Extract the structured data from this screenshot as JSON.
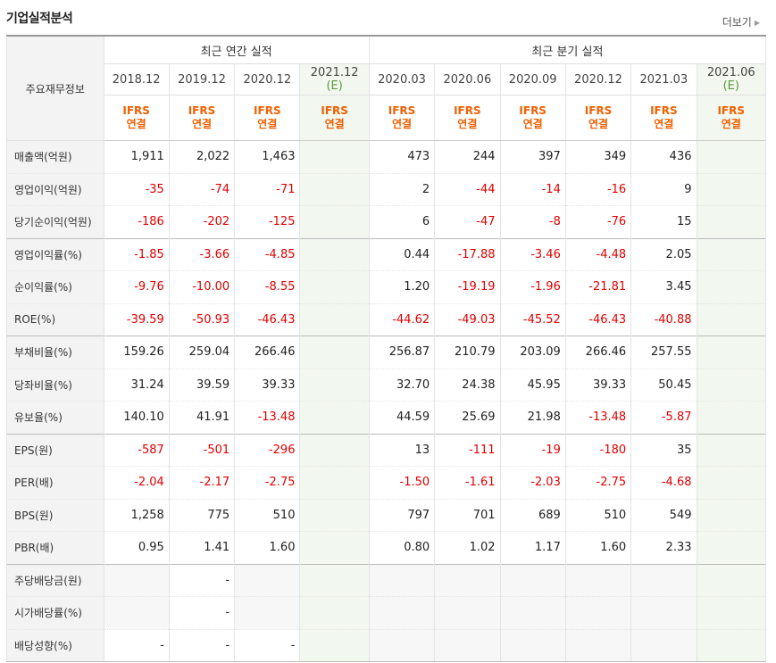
{
  "title": "기업실적분석",
  "more_label": "더보기",
  "more_icon": "triangle-right-icon",
  "row_header_label": "주요재무정보",
  "groups": [
    "최근 연간 실적",
    "최근 분기 실적"
  ],
  "periods": [
    {
      "period": "2018.12",
      "est": ""
    },
    {
      "period": "2019.12",
      "est": ""
    },
    {
      "period": "2020.12",
      "est": ""
    },
    {
      "period": "2021.12",
      "est": "(E)"
    },
    {
      "period": "2020.03",
      "est": ""
    },
    {
      "period": "2020.06",
      "est": ""
    },
    {
      "period": "2020.09",
      "est": ""
    },
    {
      "period": "2020.12",
      "est": ""
    },
    {
      "period": "2021.03",
      "est": ""
    },
    {
      "period": "2021.06",
      "est": "(E)"
    }
  ],
  "basis": {
    "line1": "IFRS",
    "line2": "연결"
  },
  "colors": {
    "negative": "#e00000",
    "basis": "#f06000",
    "estimate": "#5a9a3a"
  },
  "rows": [
    {
      "label": "매출액(억원)",
      "values": [
        "1,911",
        "2,022",
        "1,463",
        "",
        "473",
        "244",
        "397",
        "349",
        "436",
        ""
      ]
    },
    {
      "label": "영업이익(억원)",
      "values": [
        "-35",
        "-74",
        "-71",
        "",
        "2",
        "-44",
        "-14",
        "-16",
        "9",
        ""
      ]
    },
    {
      "label": "당기순이익(억원)",
      "values": [
        "-186",
        "-202",
        "-125",
        "",
        "6",
        "-47",
        "-8",
        "-76",
        "15",
        ""
      ]
    },
    {
      "label": "영업이익률(%)",
      "values": [
        "-1.85",
        "-3.66",
        "-4.85",
        "",
        "0.44",
        "-17.88",
        "-3.46",
        "-4.48",
        "2.05",
        ""
      ]
    },
    {
      "label": "순이익률(%)",
      "values": [
        "-9.76",
        "-10.00",
        "-8.55",
        "",
        "1.20",
        "-19.19",
        "-1.96",
        "-21.81",
        "3.45",
        ""
      ]
    },
    {
      "label": "ROE(%)",
      "values": [
        "-39.59",
        "-50.93",
        "-46.43",
        "",
        "-44.62",
        "-49.03",
        "-45.52",
        "-46.43",
        "-40.88",
        ""
      ]
    },
    {
      "label": "부채비율(%)",
      "values": [
        "159.26",
        "259.04",
        "266.46",
        "",
        "256.87",
        "210.79",
        "203.09",
        "266.46",
        "257.55",
        ""
      ]
    },
    {
      "label": "당좌비율(%)",
      "values": [
        "31.24",
        "39.59",
        "39.33",
        "",
        "32.70",
        "24.38",
        "45.95",
        "39.33",
        "50.45",
        ""
      ]
    },
    {
      "label": "유보율(%)",
      "values": [
        "140.10",
        "41.91",
        "-13.48",
        "",
        "44.59",
        "25.69",
        "21.98",
        "-13.48",
        "-5.87",
        ""
      ]
    },
    {
      "label": "EPS(원)",
      "values": [
        "-587",
        "-501",
        "-296",
        "",
        "13",
        "-111",
        "-19",
        "-180",
        "35",
        ""
      ]
    },
    {
      "label": "PER(배)",
      "values": [
        "-2.04",
        "-2.17",
        "-2.75",
        "",
        "-1.50",
        "-1.61",
        "-2.03",
        "-2.75",
        "-4.68",
        ""
      ]
    },
    {
      "label": "BPS(원)",
      "values": [
        "1,258",
        "775",
        "510",
        "",
        "797",
        "701",
        "689",
        "510",
        "549",
        ""
      ]
    },
    {
      "label": "PBR(배)",
      "values": [
        "0.95",
        "1.41",
        "1.60",
        "",
        "0.80",
        "1.02",
        "1.17",
        "1.60",
        "2.33",
        ""
      ]
    },
    {
      "label": "주당배당금(원)",
      "values": [
        "",
        "-",
        "",
        "",
        "",
        "",
        "",
        "",
        "",
        ""
      ]
    },
    {
      "label": "시가배당률(%)",
      "values": [
        "",
        "-",
        "",
        "",
        "",
        "",
        "",
        "",
        "",
        ""
      ]
    },
    {
      "label": "배당성향(%)",
      "values": [
        "-",
        "-",
        "-",
        "",
        "",
        "",
        "",
        "",
        "",
        ""
      ]
    }
  ]
}
